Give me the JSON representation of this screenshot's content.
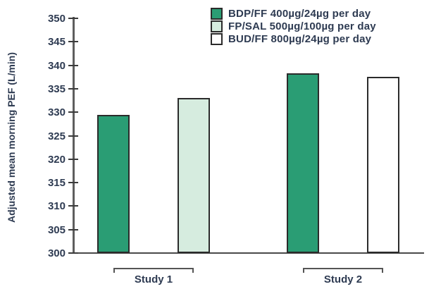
{
  "chart_data": {
    "type": "bar",
    "title": "",
    "xlabel": "",
    "ylabel": "Adjusted mean morning PEF (L/min)",
    "ylim": [
      300,
      350
    ],
    "ytick_step": 5,
    "ytick_labels": [
      "300",
      "305",
      "310",
      "315",
      "320",
      "325",
      "330",
      "335",
      "340",
      "345",
      "350"
    ],
    "grid": false,
    "legend_position": "top-right",
    "series": [
      {
        "name": "BDP/FF 400µg/24µg per day",
        "color": "#2a9d74"
      },
      {
        "name": "FP/SAL 500µg/100µg per day",
        "color": "#d6ecdf"
      },
      {
        "name": "BUD/FF 800µg/24µg per day",
        "color": "#ffffff"
      }
    ],
    "groups": [
      {
        "label": "Study 1",
        "bars": [
          {
            "series": 0,
            "value": 329.5
          },
          {
            "series": 1,
            "value": 333.0
          }
        ]
      },
      {
        "label": "Study 2",
        "bars": [
          {
            "series": 0,
            "value": 338.3
          },
          {
            "series": 2,
            "value": 337.6
          }
        ]
      }
    ]
  },
  "colors": {
    "background": "#ffffff",
    "bar_border": "#2b2b2b",
    "axis": "#5e5e5e",
    "text": "#2e3b52",
    "bar_dark_green": "#2a9d74",
    "bar_light_green": "#d6ecdf",
    "bar_white": "#ffffff"
  }
}
